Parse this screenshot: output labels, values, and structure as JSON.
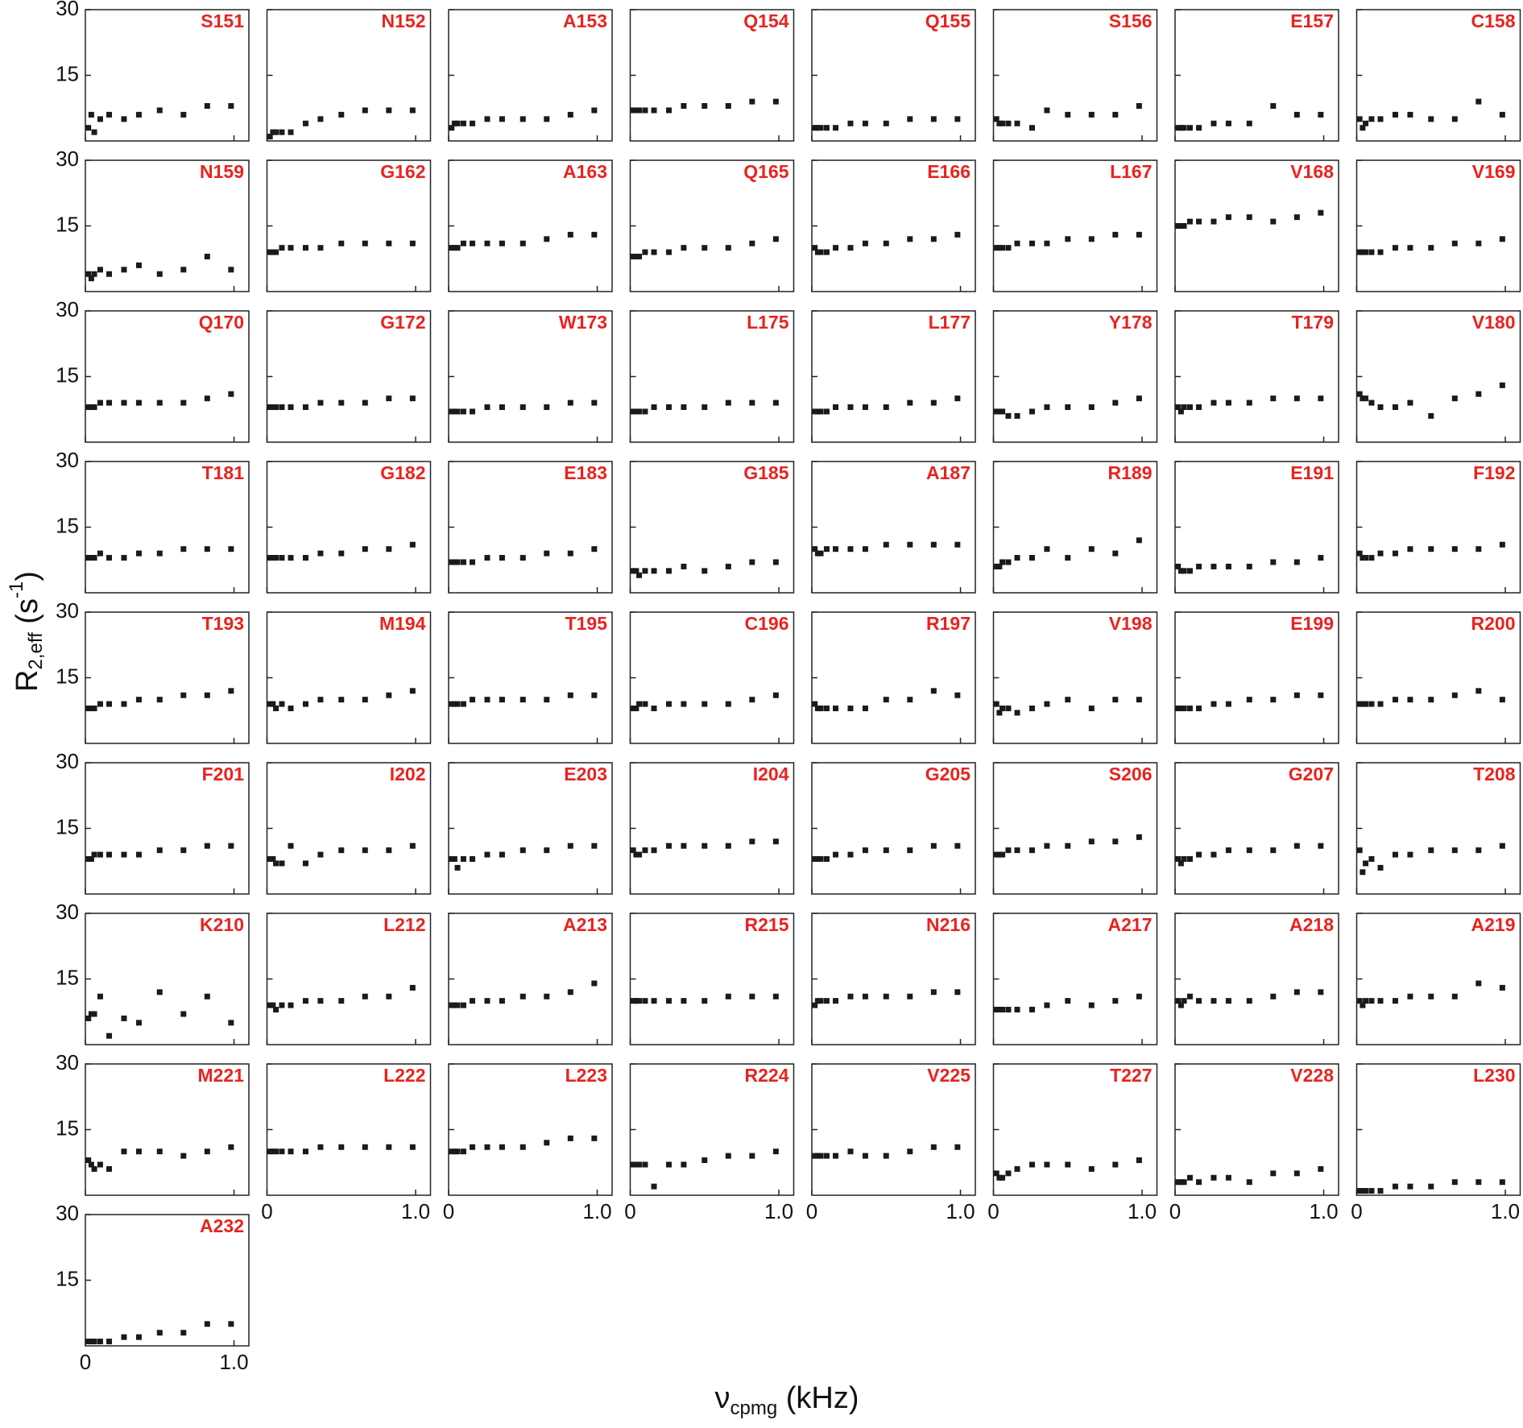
{
  "chart_data": {
    "type": "scatter",
    "ylabel": [
      "R",
      "2,eff",
      " (s",
      "-1",
      ")"
    ],
    "xlabel": [
      "ν",
      "cpmg",
      " (kHz)"
    ],
    "xlim": [
      0,
      1.1
    ],
    "ylim": [
      0,
      30
    ],
    "xticks": [
      0,
      {
        "value": 1,
        "label": "1.0"
      }
    ],
    "yticks": [
      15,
      30
    ],
    "x": [
      0.02,
      0.04,
      0.06,
      0.1,
      0.16,
      0.26,
      0.36,
      0.5,
      0.66,
      0.82,
      0.98
    ],
    "label_color": "#e8231f",
    "color": "#1a1a1a",
    "series": [
      {
        "name": "S151",
        "values": [
          3,
          6,
          2,
          5,
          6,
          5,
          6,
          7,
          6,
          8,
          8
        ]
      },
      {
        "name": "N152",
        "values": [
          1,
          2,
          2,
          2,
          2,
          4,
          5,
          6,
          7,
          7,
          7
        ]
      },
      {
        "name": "A153",
        "values": [
          3,
          4,
          4,
          4,
          4,
          5,
          5,
          5,
          5,
          6,
          7
        ]
      },
      {
        "name": "Q154",
        "values": [
          7,
          7,
          7,
          7,
          7,
          7,
          8,
          8,
          8,
          9,
          9
        ]
      },
      {
        "name": "Q155",
        "values": [
          3,
          3,
          3,
          3,
          3,
          4,
          4,
          4,
          5,
          5,
          5
        ]
      },
      {
        "name": "S156",
        "values": [
          5,
          4,
          4,
          4,
          4,
          3,
          7,
          6,
          6,
          6,
          8
        ]
      },
      {
        "name": "E157",
        "values": [
          3,
          3,
          3,
          3,
          3,
          4,
          4,
          4,
          8,
          6,
          6
        ]
      },
      {
        "name": "C158",
        "values": [
          5,
          3,
          4,
          5,
          5,
          6,
          6,
          5,
          5,
          9,
          6
        ]
      },
      {
        "name": "N159",
        "values": [
          4,
          3,
          4,
          5,
          4,
          5,
          6,
          4,
          5,
          8,
          5
        ]
      },
      {
        "name": "G162",
        "values": [
          9,
          9,
          9,
          10,
          10,
          10,
          10,
          11,
          11,
          11,
          11
        ]
      },
      {
        "name": "A163",
        "values": [
          10,
          10,
          10,
          11,
          11,
          11,
          11,
          11,
          12,
          13,
          13
        ]
      },
      {
        "name": "Q165",
        "values": [
          8,
          8,
          8,
          9,
          9,
          9,
          10,
          10,
          10,
          11,
          12
        ]
      },
      {
        "name": "E166",
        "values": [
          10,
          9,
          9,
          9,
          10,
          10,
          11,
          11,
          12,
          12,
          13
        ]
      },
      {
        "name": "L167",
        "values": [
          10,
          10,
          10,
          10,
          11,
          11,
          11,
          12,
          12,
          13,
          13
        ]
      },
      {
        "name": "V168",
        "values": [
          15,
          15,
          15,
          16,
          16,
          16,
          17,
          17,
          16,
          17,
          18
        ]
      },
      {
        "name": "V169",
        "values": [
          9,
          9,
          9,
          9,
          9,
          10,
          10,
          10,
          11,
          11,
          12
        ]
      },
      {
        "name": "Q170",
        "values": [
          8,
          8,
          8,
          9,
          9,
          9,
          9,
          9,
          9,
          10,
          11
        ]
      },
      {
        "name": "G172",
        "values": [
          8,
          8,
          8,
          8,
          8,
          8,
          9,
          9,
          9,
          10,
          10
        ]
      },
      {
        "name": "W173",
        "values": [
          7,
          7,
          7,
          7,
          7,
          8,
          8,
          8,
          8,
          9,
          9
        ]
      },
      {
        "name": "L175",
        "values": [
          7,
          7,
          7,
          7,
          8,
          8,
          8,
          8,
          9,
          9,
          9
        ]
      },
      {
        "name": "L177",
        "values": [
          7,
          7,
          7,
          7,
          8,
          8,
          8,
          8,
          9,
          9,
          10
        ]
      },
      {
        "name": "Y178",
        "values": [
          7,
          7,
          7,
          6,
          6,
          7,
          8,
          8,
          8,
          9,
          10
        ]
      },
      {
        "name": "T179",
        "values": [
          8,
          7,
          8,
          8,
          8,
          9,
          9,
          9,
          10,
          10,
          10
        ]
      },
      {
        "name": "V180",
        "values": [
          11,
          10,
          10,
          9,
          8,
          8,
          9,
          6,
          10,
          11,
          13
        ]
      },
      {
        "name": "T181",
        "values": [
          8,
          8,
          8,
          9,
          8,
          8,
          9,
          9,
          10,
          10,
          10
        ]
      },
      {
        "name": "G182",
        "values": [
          8,
          8,
          8,
          8,
          8,
          8,
          9,
          9,
          10,
          10,
          11
        ]
      },
      {
        "name": "E183",
        "values": [
          7,
          7,
          7,
          7,
          7,
          8,
          8,
          8,
          9,
          9,
          10
        ]
      },
      {
        "name": "G185",
        "values": [
          5,
          5,
          4,
          5,
          5,
          5,
          6,
          5,
          6,
          7,
          7
        ]
      },
      {
        "name": "A187",
        "values": [
          10,
          9,
          9,
          10,
          10,
          10,
          10,
          11,
          11,
          11,
          11
        ]
      },
      {
        "name": "R189",
        "values": [
          6,
          6,
          7,
          7,
          8,
          8,
          10,
          8,
          10,
          9,
          12
        ]
      },
      {
        "name": "E191",
        "values": [
          6,
          5,
          5,
          5,
          6,
          6,
          6,
          6,
          7,
          7,
          8
        ]
      },
      {
        "name": "F192",
        "values": [
          9,
          8,
          8,
          8,
          9,
          9,
          10,
          10,
          10,
          10,
          11
        ]
      },
      {
        "name": "T193",
        "values": [
          8,
          8,
          8,
          9,
          9,
          9,
          10,
          10,
          11,
          11,
          12
        ]
      },
      {
        "name": "M194",
        "values": [
          9,
          9,
          8,
          9,
          8,
          9,
          10,
          10,
          10,
          11,
          12
        ]
      },
      {
        "name": "T195",
        "values": [
          9,
          9,
          9,
          9,
          10,
          10,
          10,
          10,
          10,
          11,
          11
        ]
      },
      {
        "name": "C196",
        "values": [
          8,
          8,
          9,
          9,
          8,
          9,
          9,
          9,
          9,
          10,
          11
        ]
      },
      {
        "name": "R197",
        "values": [
          9,
          8,
          8,
          8,
          8,
          8,
          8,
          10,
          10,
          12,
          11
        ]
      },
      {
        "name": "V198",
        "values": [
          9,
          7,
          8,
          8,
          7,
          8,
          9,
          10,
          8,
          10,
          10
        ]
      },
      {
        "name": "E199",
        "values": [
          8,
          8,
          8,
          8,
          8,
          9,
          9,
          10,
          10,
          11,
          11
        ]
      },
      {
        "name": "R200",
        "values": [
          9,
          9,
          9,
          9,
          9,
          10,
          10,
          10,
          11,
          12,
          10
        ]
      },
      {
        "name": "F201",
        "values": [
          8,
          8,
          9,
          9,
          9,
          9,
          9,
          10,
          10,
          11,
          11
        ]
      },
      {
        "name": "I202",
        "values": [
          8,
          8,
          7,
          7,
          11,
          7,
          9,
          10,
          10,
          10,
          11
        ]
      },
      {
        "name": "E203",
        "values": [
          8,
          8,
          6,
          8,
          8,
          9,
          9,
          10,
          10,
          11,
          11
        ]
      },
      {
        "name": "I204",
        "values": [
          10,
          9,
          9,
          10,
          10,
          11,
          11,
          11,
          11,
          12,
          12
        ]
      },
      {
        "name": "G205",
        "values": [
          8,
          8,
          8,
          8,
          9,
          9,
          10,
          10,
          10,
          11,
          11
        ]
      },
      {
        "name": "S206",
        "values": [
          9,
          9,
          9,
          10,
          10,
          10,
          11,
          11,
          12,
          12,
          13
        ]
      },
      {
        "name": "G207",
        "values": [
          8,
          7,
          8,
          8,
          9,
          9,
          10,
          10,
          10,
          11,
          11
        ]
      },
      {
        "name": "T208",
        "values": [
          10,
          5,
          7,
          8,
          6,
          9,
          9,
          10,
          10,
          10,
          11
        ]
      },
      {
        "name": "K210",
        "values": [
          6,
          7,
          7,
          11,
          2,
          6,
          5,
          12,
          7,
          11,
          5
        ]
      },
      {
        "name": "L212",
        "values": [
          9,
          9,
          8,
          9,
          9,
          10,
          10,
          10,
          11,
          11,
          13
        ]
      },
      {
        "name": "A213",
        "values": [
          9,
          9,
          9,
          9,
          10,
          10,
          10,
          11,
          11,
          12,
          14
        ]
      },
      {
        "name": "R215",
        "values": [
          10,
          10,
          10,
          10,
          10,
          10,
          10,
          10,
          11,
          11,
          11
        ]
      },
      {
        "name": "N216",
        "values": [
          9,
          10,
          10,
          10,
          10,
          11,
          11,
          11,
          11,
          12,
          12
        ]
      },
      {
        "name": "A217",
        "values": [
          8,
          8,
          8,
          8,
          8,
          8,
          9,
          10,
          9,
          10,
          11
        ]
      },
      {
        "name": "A218",
        "values": [
          10,
          9,
          10,
          11,
          10,
          10,
          10,
          10,
          11,
          12,
          12
        ]
      },
      {
        "name": "A219",
        "values": [
          10,
          9,
          10,
          10,
          10,
          10,
          11,
          11,
          11,
          14,
          13
        ]
      },
      {
        "name": "M221",
        "values": [
          8,
          7,
          6,
          7,
          6,
          10,
          10,
          10,
          9,
          10,
          11
        ]
      },
      {
        "name": "L222",
        "values": [
          10,
          10,
          10,
          10,
          10,
          10,
          11,
          11,
          11,
          11,
          11
        ]
      },
      {
        "name": "L223",
        "values": [
          10,
          10,
          10,
          10,
          11,
          11,
          11,
          11,
          12,
          13,
          13
        ]
      },
      {
        "name": "R224",
        "values": [
          7,
          7,
          7,
          7,
          2,
          7,
          7,
          8,
          9,
          9,
          10
        ]
      },
      {
        "name": "V225",
        "values": [
          9,
          9,
          9,
          9,
          9,
          10,
          9,
          9,
          10,
          11,
          11
        ]
      },
      {
        "name": "T227",
        "values": [
          5,
          4,
          4,
          5,
          6,
          7,
          7,
          7,
          6,
          7,
          8
        ]
      },
      {
        "name": "V228",
        "values": [
          3,
          3,
          3,
          4,
          3,
          4,
          4,
          3,
          5,
          5,
          6
        ]
      },
      {
        "name": "L230",
        "values": [
          1,
          1,
          1,
          1,
          1,
          2,
          2,
          2,
          3,
          3,
          3
        ]
      },
      {
        "name": "A232",
        "values": [
          1,
          1,
          1,
          1,
          1,
          2,
          2,
          3,
          3,
          5,
          5
        ]
      }
    ]
  }
}
